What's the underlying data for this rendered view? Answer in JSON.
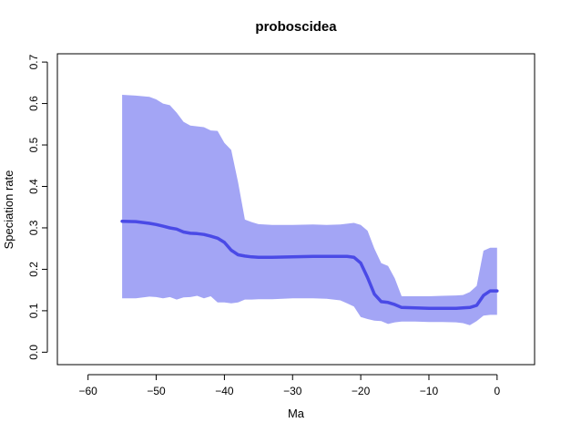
{
  "chart_data": {
    "type": "area",
    "title": "proboscidea",
    "xlabel": "Ma",
    "ylabel": "Speciation rate",
    "xlim": [
      -64.5,
      5.5
    ],
    "ylim": [
      -0.03,
      0.72
    ],
    "xticks": [
      -60,
      -50,
      -40,
      -30,
      -20,
      -10,
      0
    ],
    "xtick_labels": [
      "−60",
      "−50",
      "−40",
      "−30",
      "−20",
      "−10",
      "0"
    ],
    "yticks": [
      0.0,
      0.1,
      0.2,
      0.3,
      0.4,
      0.5,
      0.6,
      0.7
    ],
    "ytick_labels": [
      "0.0",
      "0.1",
      "0.2",
      "0.3",
      "0.4",
      "0.5",
      "0.6",
      "0.7"
    ],
    "colors": {
      "band": "#a3a5f5",
      "line": "#4a4ae6"
    },
    "series": [
      {
        "name": "upper",
        "x": [
          -55,
          -53,
          -51,
          -50,
          -49,
          -48,
          -47,
          -46,
          -45,
          -44,
          -43,
          -42,
          -41,
          -40,
          -39,
          -38,
          -37,
          -36,
          -35,
          -33,
          -30,
          -27,
          -25,
          -23,
          -22,
          -21,
          -20,
          -19,
          -18,
          -17,
          -16,
          -15,
          -14,
          -12,
          -10,
          -8,
          -6,
          -5,
          -4,
          -3,
          -2,
          -1,
          0
        ],
        "values": [
          0.621,
          0.619,
          0.616,
          0.61,
          0.6,
          0.596,
          0.578,
          0.556,
          0.547,
          0.545,
          0.543,
          0.535,
          0.534,
          0.505,
          0.488,
          0.41,
          0.32,
          0.314,
          0.309,
          0.307,
          0.307,
          0.308,
          0.307,
          0.308,
          0.31,
          0.312,
          0.307,
          0.293,
          0.25,
          0.215,
          0.208,
          0.178,
          0.135,
          0.135,
          0.135,
          0.136,
          0.137,
          0.138,
          0.145,
          0.16,
          0.245,
          0.252,
          0.252
        ]
      },
      {
        "name": "lower",
        "x": [
          -55,
          -53,
          -51,
          -50,
          -49,
          -48,
          -47,
          -46,
          -45,
          -44,
          -43,
          -42,
          -41,
          -40,
          -39,
          -38,
          -37,
          -36,
          -35,
          -33,
          -30,
          -27,
          -25,
          -23,
          -22,
          -21,
          -20,
          -19,
          -18,
          -17,
          -16,
          -15,
          -14,
          -12,
          -10,
          -8,
          -6,
          -5,
          -4,
          -3,
          -2,
          -1,
          0
        ],
        "values": [
          0.13,
          0.13,
          0.134,
          0.133,
          0.13,
          0.133,
          0.127,
          0.132,
          0.133,
          0.136,
          0.13,
          0.135,
          0.12,
          0.12,
          0.118,
          0.12,
          0.127,
          0.127,
          0.128,
          0.128,
          0.13,
          0.13,
          0.129,
          0.125,
          0.118,
          0.11,
          0.085,
          0.08,
          0.076,
          0.075,
          0.068,
          0.072,
          0.074,
          0.074,
          0.073,
          0.073,
          0.072,
          0.07,
          0.065,
          0.075,
          0.088,
          0.09,
          0.09
        ]
      },
      {
        "name": "mean",
        "x": [
          -55,
          -53,
          -51,
          -50,
          -49,
          -48,
          -47,
          -46,
          -45,
          -44,
          -43,
          -42,
          -41,
          -40,
          -39,
          -38,
          -37,
          -36,
          -35,
          -33,
          -30,
          -27,
          -25,
          -23,
          -22,
          -21,
          -20,
          -19,
          -18,
          -17,
          -16,
          -15,
          -14,
          -12,
          -10,
          -8,
          -6,
          -5,
          -4,
          -3,
          -2,
          -1,
          0
        ],
        "values": [
          0.316,
          0.315,
          0.311,
          0.308,
          0.304,
          0.3,
          0.297,
          0.29,
          0.287,
          0.286,
          0.284,
          0.28,
          0.275,
          0.265,
          0.246,
          0.235,
          0.232,
          0.23,
          0.229,
          0.229,
          0.23,
          0.231,
          0.231,
          0.231,
          0.231,
          0.229,
          0.215,
          0.18,
          0.14,
          0.122,
          0.12,
          0.115,
          0.108,
          0.107,
          0.106,
          0.106,
          0.106,
          0.107,
          0.108,
          0.113,
          0.137,
          0.148,
          0.148
        ]
      }
    ]
  }
}
